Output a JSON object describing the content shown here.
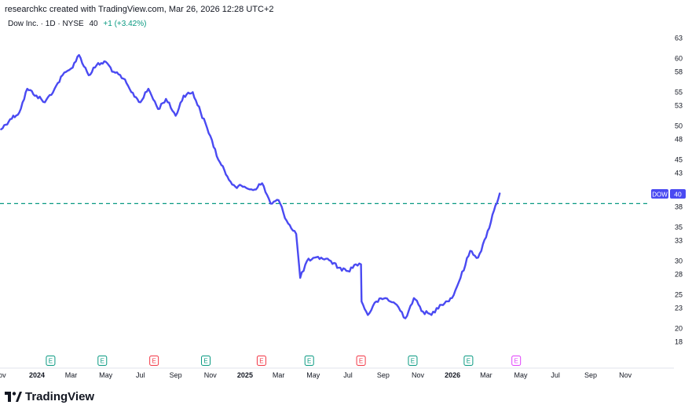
{
  "header": {
    "credit": "researchkc created with TradingView.com, Mar 26, 2026 12:28 UTC+2",
    "symbol": "Dow Inc. · 1D · NYSE",
    "price": "40",
    "change": "+1 (+3.42%)"
  },
  "brand": {
    "name": "TradingView",
    "icon": "tradingview-logo-icon"
  },
  "colors": {
    "line": "#4a4af2",
    "dashed": "#089981",
    "earnings_past": "#089981",
    "earnings_miss": "#f23645",
    "earnings_future": "#e040fb"
  },
  "chart_data": {
    "type": "line",
    "title": "",
    "series": [
      {
        "name": "",
        "points": [
          [
            "2023-10-30",
            49.5
          ],
          [
            "2023-11-15",
            51
          ],
          [
            "2023-12-01",
            52
          ],
          [
            "2023-12-15",
            55.5
          ],
          [
            "2023-12-31",
            54.5
          ],
          [
            "2024-01-15",
            53.5
          ],
          [
            "2024-02-01",
            55.5
          ],
          [
            "2024-02-15",
            57.5
          ],
          [
            "2024-03-01",
            58.5
          ],
          [
            "2024-03-15",
            60.5
          ],
          [
            "2024-04-01",
            57.5
          ],
          [
            "2024-04-15",
            59
          ],
          [
            "2024-05-01",
            59.5
          ],
          [
            "2024-05-15",
            58
          ],
          [
            "2024-06-01",
            57
          ],
          [
            "2024-06-15",
            55
          ],
          [
            "2024-07-01",
            53.5
          ],
          [
            "2024-07-15",
            55.5
          ],
          [
            "2024-08-01",
            52.5
          ],
          [
            "2024-08-15",
            54
          ],
          [
            "2024-09-01",
            51.5
          ],
          [
            "2024-09-15",
            54.5
          ],
          [
            "2024-10-01",
            55
          ],
          [
            "2024-10-15",
            52
          ],
          [
            "2024-11-01",
            48.5
          ],
          [
            "2024-11-15",
            45
          ],
          [
            "2024-12-01",
            42.5
          ],
          [
            "2024-12-15",
            41
          ],
          [
            "2024-12-31",
            41
          ],
          [
            "2025-01-15",
            40.5
          ],
          [
            "2025-01-31",
            41.5
          ],
          [
            "2025-02-15",
            38.5
          ],
          [
            "2025-03-01",
            39
          ],
          [
            "2025-03-15",
            36
          ],
          [
            "2025-04-01",
            34
          ],
          [
            "2025-04-08",
            27.5
          ],
          [
            "2025-04-20",
            30
          ],
          [
            "2025-05-15",
            30.5
          ],
          [
            "2025-06-01",
            30
          ],
          [
            "2025-06-15",
            29
          ],
          [
            "2025-07-01",
            28.5
          ],
          [
            "2025-07-15",
            29.5
          ],
          [
            "2025-07-24",
            29.5
          ],
          [
            "2025-07-25",
            24
          ],
          [
            "2025-08-05",
            22
          ],
          [
            "2025-08-20",
            24
          ],
          [
            "2025-09-05",
            24.5
          ],
          [
            "2025-09-25",
            23.5
          ],
          [
            "2025-10-10",
            21.5
          ],
          [
            "2025-10-25",
            24.5
          ],
          [
            "2025-11-10",
            22.5
          ],
          [
            "2025-11-25",
            22
          ],
          [
            "2025-12-10",
            23.5
          ],
          [
            "2025-12-31",
            24.5
          ],
          [
            "2026-01-15",
            27.5
          ],
          [
            "2026-02-01",
            31.5
          ],
          [
            "2026-02-15",
            30.5
          ],
          [
            "2026-03-01",
            33.5
          ],
          [
            "2026-03-15",
            37.5
          ],
          [
            "2026-03-25",
            40
          ]
        ]
      }
    ],
    "y_ticks": [
      "63",
      "60",
      "58",
      "55",
      "53",
      "50",
      "48",
      "45",
      "43",
      "40",
      "38",
      "35",
      "33",
      "30",
      "28",
      "25",
      "23",
      "20",
      "18"
    ],
    "ylim": [
      17.5,
      64
    ],
    "x_ticks": [
      {
        "label": "ov",
        "date": "2023-11-01",
        "bold": false
      },
      {
        "label": "2024",
        "date": "2024-01-01",
        "bold": true
      },
      {
        "label": "Mar",
        "date": "2024-03-01",
        "bold": false
      },
      {
        "label": "May",
        "date": "2024-05-01",
        "bold": false
      },
      {
        "label": "Jul",
        "date": "2024-07-01",
        "bold": false
      },
      {
        "label": "Sep",
        "date": "2024-09-01",
        "bold": false
      },
      {
        "label": "Nov",
        "date": "2024-11-01",
        "bold": false
      },
      {
        "label": "2025",
        "date": "2025-01-01",
        "bold": true
      },
      {
        "label": "Mar",
        "date": "2025-03-01",
        "bold": false
      },
      {
        "label": "May",
        "date": "2025-05-01",
        "bold": false
      },
      {
        "label": "Jul",
        "date": "2025-07-01",
        "bold": false
      },
      {
        "label": "Sep",
        "date": "2025-09-01",
        "bold": false
      },
      {
        "label": "Nov",
        "date": "2025-11-01",
        "bold": false
      },
      {
        "label": "2026",
        "date": "2026-01-01",
        "bold": true
      },
      {
        "label": "Mar",
        "date": "2026-03-01",
        "bold": false
      },
      {
        "label": "May",
        "date": "2026-05-01",
        "bold": false
      },
      {
        "label": "Jul",
        "date": "2026-07-01",
        "bold": false
      },
      {
        "label": "Sep",
        "date": "2026-09-01",
        "bold": false
      },
      {
        "label": "Nov",
        "date": "2026-11-01",
        "bold": false
      }
    ],
    "xlim": [
      "2023-10-28",
      "2026-12-15"
    ],
    "last_price_line": 38.5,
    "price_label": {
      "symbol": "DOW",
      "value": "40"
    },
    "earnings": [
      {
        "date": "2024-01-25",
        "kind": "past"
      },
      {
        "date": "2024-04-25",
        "kind": "past"
      },
      {
        "date": "2024-07-25",
        "kind": "miss"
      },
      {
        "date": "2024-10-24",
        "kind": "past"
      },
      {
        "date": "2025-01-30",
        "kind": "miss"
      },
      {
        "date": "2025-04-24",
        "kind": "past"
      },
      {
        "date": "2025-07-24",
        "kind": "miss"
      },
      {
        "date": "2025-10-23",
        "kind": "past"
      },
      {
        "date": "2026-01-29",
        "kind": "past"
      },
      {
        "date": "2026-04-23",
        "kind": "future"
      }
    ],
    "earnings_label": "E",
    "grid": false
  }
}
